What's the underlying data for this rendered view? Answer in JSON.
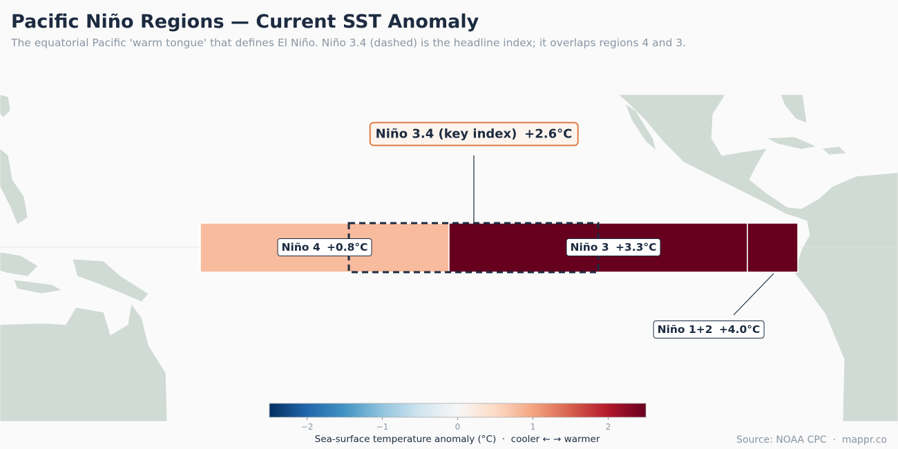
{
  "header": {
    "title": "Pacific Niño Regions — Current SST Anomaly",
    "subtitle": "The equatorial Pacific 'warm tongue' that defines El Niño. Niño 3.4 (dashed) is the headline index; it overlaps regions 4 and 3."
  },
  "map": {
    "regions": [
      {
        "name": "Niño 4",
        "value": 0.8,
        "value_label": "+0.8°C"
      },
      {
        "name": "Niño 3",
        "value": 3.3,
        "value_label": "+3.3°C"
      },
      {
        "name": "Niño 1+2",
        "value": 4.0,
        "value_label": "+4.0°C"
      },
      {
        "name": "Niño 3.4 (key index)",
        "value": 2.6,
        "value_label": "+2.6°C",
        "outline": "dashed"
      }
    ],
    "colorbar": {
      "colormap": "RdBu_r",
      "clim": [
        -2.5,
        2.5
      ],
      "ticks": [
        {
          "value": -2,
          "label": "−2"
        },
        {
          "value": -1,
          "label": "−1"
        },
        0,
        1,
        2
      ],
      "label": "Sea-surface temperature anomaly (°C)  ·  cooler ← → warmer"
    }
  },
  "footer": {
    "source": "Source: NOAA CPC  ·  mappr.co"
  }
}
